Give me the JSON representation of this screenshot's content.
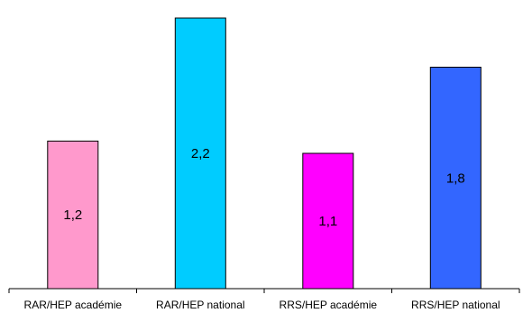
{
  "chart_data": {
    "type": "bar",
    "title": "",
    "xlabel": "",
    "ylabel": "",
    "categories": [
      "RAR/HEP académie",
      "RAR/HEP national",
      "RRS/HEP académie",
      "RRS/HEP national"
    ],
    "values": [
      1.2,
      2.2,
      1.1,
      1.8
    ],
    "value_labels": [
      "1,2",
      "2,2",
      "1,1",
      "1,8"
    ],
    "colors": [
      "#ff99cc",
      "#00ccff",
      "#ff00ff",
      "#3366ff"
    ],
    "ylim": [
      0,
      2.2
    ],
    "grid": false,
    "legend": "none"
  }
}
